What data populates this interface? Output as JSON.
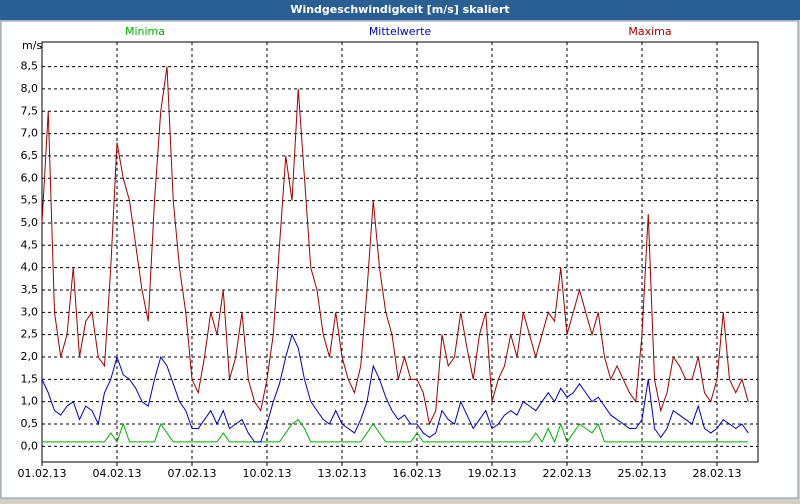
{
  "chart_data": {
    "type": "line",
    "title": "Windgeschwindigkeit [m/s] skaliert",
    "ylabel": "m/s",
    "categories": [
      "01.02.13",
      null,
      null,
      null,
      null,
      null,
      null,
      null,
      null,
      null,
      null,
      null,
      "04.02.13",
      null,
      null,
      null,
      null,
      null,
      null,
      null,
      null,
      null,
      null,
      null,
      "07.02.13",
      null,
      null,
      null,
      null,
      null,
      null,
      null,
      null,
      null,
      null,
      null,
      "10.02.13",
      null,
      null,
      null,
      null,
      null,
      null,
      null,
      null,
      null,
      null,
      null,
      "13.02.13",
      null,
      null,
      null,
      null,
      null,
      null,
      null,
      null,
      null,
      null,
      null,
      "16.02.13",
      null,
      null,
      null,
      null,
      null,
      null,
      null,
      null,
      null,
      null,
      null,
      "19.02.13",
      null,
      null,
      null,
      null,
      null,
      null,
      null,
      null,
      null,
      null,
      null,
      "22.02.13",
      null,
      null,
      null,
      null,
      null,
      null,
      null,
      null,
      null,
      null,
      null,
      "25.02.13",
      null,
      null,
      null,
      null,
      null,
      null,
      null,
      null,
      null,
      null,
      null,
      "28.02.13",
      null,
      null,
      null,
      null,
      null
    ],
    "series": [
      {
        "name": "Minima",
        "color": "#00b000",
        "values": [
          0.1,
          0.1,
          0.1,
          0.1,
          0.1,
          0.1,
          0.1,
          0.1,
          0.1,
          0.1,
          0.1,
          0.3,
          0.1,
          0.5,
          0.1,
          0.1,
          0.1,
          0.1,
          0.1,
          0.5,
          0.3,
          0.1,
          0.1,
          0.1,
          0.1,
          0.1,
          0.1,
          0.1,
          0.1,
          0.3,
          0.1,
          0.1,
          0.1,
          0.1,
          0.1,
          0.1,
          0.1,
          0.1,
          0.1,
          0.3,
          0.5,
          0.6,
          0.4,
          0.1,
          0.1,
          0.1,
          0.1,
          0.1,
          0.1,
          0.1,
          0.1,
          0.1,
          0.3,
          0.5,
          0.3,
          0.1,
          0.1,
          0.1,
          0.1,
          0.1,
          0.3,
          0.1,
          0.1,
          0.1,
          0.1,
          0.1,
          0.1,
          0.1,
          0.1,
          0.1,
          0.1,
          0.1,
          0.1,
          0.1,
          0.1,
          0.1,
          0.1,
          0.1,
          0.1,
          0.3,
          0.1,
          0.4,
          0.1,
          0.5,
          0.1,
          0.3,
          0.5,
          0.4,
          0.3,
          0.5,
          0.1,
          0.1,
          0.1,
          0.1,
          0.1,
          0.1,
          0.1,
          0.1,
          0.1,
          0.1,
          0.1,
          0.1,
          0.1,
          0.1,
          0.1,
          0.1,
          0.1,
          0.1,
          0.1,
          0.1,
          0.1,
          0.1,
          0.1,
          0.1
        ]
      },
      {
        "name": "Mittelwerte",
        "color": "#0000c0",
        "values": [
          1.5,
          1.2,
          0.8,
          0.7,
          0.9,
          1.0,
          0.6,
          0.9,
          0.8,
          0.5,
          1.2,
          1.5,
          2.0,
          1.6,
          1.5,
          1.3,
          1.0,
          0.9,
          1.5,
          2.0,
          1.8,
          1.4,
          1.0,
          0.8,
          0.4,
          0.4,
          0.6,
          0.8,
          0.5,
          0.8,
          0.4,
          0.5,
          0.6,
          0.3,
          0.1,
          0.1,
          0.5,
          1.0,
          1.4,
          2.0,
          2.5,
          2.2,
          1.5,
          1.0,
          0.8,
          0.6,
          0.5,
          0.8,
          0.5,
          0.4,
          0.3,
          0.6,
          1.0,
          1.8,
          1.5,
          1.1,
          0.8,
          0.6,
          0.7,
          0.5,
          0.5,
          0.3,
          0.2,
          0.3,
          0.8,
          0.6,
          0.5,
          1.0,
          0.7,
          0.4,
          0.6,
          0.8,
          0.4,
          0.5,
          0.7,
          0.8,
          0.7,
          1.0,
          0.9,
          0.8,
          1.0,
          1.2,
          1.0,
          1.3,
          1.1,
          1.2,
          1.4,
          1.2,
          1.0,
          1.1,
          0.9,
          0.7,
          0.6,
          0.5,
          0.4,
          0.4,
          0.6,
          1.5,
          0.4,
          0.2,
          0.4,
          0.8,
          0.7,
          0.6,
          0.5,
          0.9,
          0.4,
          0.3,
          0.4,
          0.6,
          0.5,
          0.4,
          0.5,
          0.3
        ]
      },
      {
        "name": "Maxima",
        "color": "#a00000",
        "values": [
          5.0,
          7.5,
          3.0,
          2.0,
          2.5,
          4.0,
          2.0,
          2.8,
          3.0,
          2.0,
          1.8,
          4.0,
          6.8,
          6.0,
          5.5,
          4.5,
          3.5,
          2.8,
          5.5,
          7.5,
          8.5,
          5.5,
          4.0,
          3.0,
          1.5,
          1.2,
          2.0,
          3.0,
          2.5,
          3.5,
          1.5,
          2.0,
          3.0,
          1.5,
          1.0,
          0.8,
          1.5,
          2.5,
          4.5,
          6.5,
          5.5,
          8.0,
          6.0,
          4.0,
          3.5,
          2.5,
          2.0,
          3.0,
          2.0,
          1.5,
          1.2,
          1.8,
          3.5,
          5.5,
          4.0,
          3.0,
          2.5,
          1.5,
          2.0,
          1.5,
          1.5,
          1.2,
          0.5,
          0.8,
          2.5,
          1.8,
          2.0,
          3.0,
          2.2,
          1.5,
          2.5,
          3.0,
          1.0,
          1.5,
          1.8,
          2.5,
          2.0,
          3.0,
          2.5,
          2.0,
          2.5,
          3.0,
          2.8,
          4.0,
          2.5,
          3.0,
          3.5,
          3.0,
          2.5,
          3.0,
          2.0,
          1.5,
          1.8,
          1.5,
          1.2,
          1.0,
          2.5,
          5.2,
          1.5,
          0.8,
          1.2,
          2.0,
          1.8,
          1.5,
          1.5,
          2.0,
          1.2,
          1.0,
          1.5,
          3.0,
          1.5,
          1.2,
          1.5,
          1.0
        ]
      }
    ],
    "ylim": [
      -0.35,
      9.05
    ],
    "yticks": [
      {
        "value": 0,
        "label": "0,0"
      },
      {
        "value": 0.5,
        "label": "0,5"
      },
      {
        "value": 1,
        "label": "1,0"
      },
      {
        "value": 1.5,
        "label": "1,5"
      },
      {
        "value": 2,
        "label": "2,0"
      },
      {
        "value": 2.5,
        "label": "2,5"
      },
      {
        "value": 3,
        "label": "3,0"
      },
      {
        "value": 3.5,
        "label": "3,5"
      },
      {
        "value": 4,
        "label": "4,0"
      },
      {
        "value": 4.5,
        "label": "4,5"
      },
      {
        "value": 5,
        "label": "5,0"
      },
      {
        "value": 5.5,
        "label": "5,5"
      },
      {
        "value": 6,
        "label": "6,0"
      },
      {
        "value": 6.5,
        "label": "6,5"
      },
      {
        "value": 7,
        "label": "7,0"
      },
      {
        "value": 7.5,
        "label": "7,5"
      },
      {
        "value": 8,
        "label": "8,0"
      },
      {
        "value": 8.5,
        "label": "8,5"
      }
    ],
    "grid": true
  }
}
